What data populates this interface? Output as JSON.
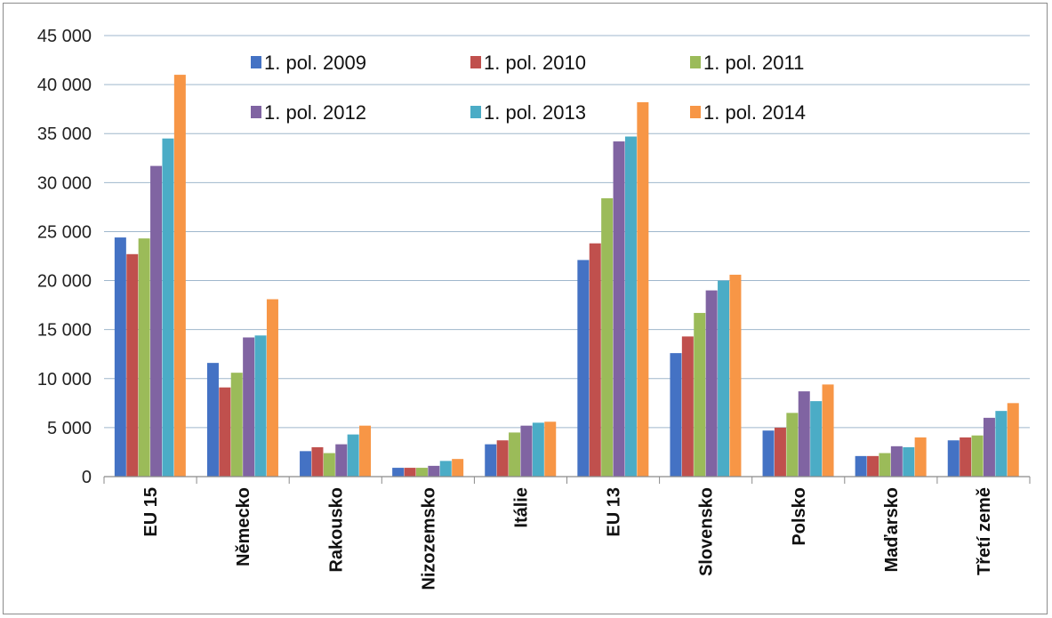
{
  "chart_data": {
    "type": "bar",
    "title": "",
    "xlabel": "",
    "ylabel": "",
    "ylim": [
      0,
      45000
    ],
    "yticks": [
      0,
      5000,
      10000,
      15000,
      20000,
      25000,
      30000,
      35000,
      40000,
      45000
    ],
    "ytick_labels": [
      "0",
      "5 000",
      "10 000",
      "15 000",
      "20 000",
      "25 000",
      "30 000",
      "35 000",
      "40 000",
      "45 000"
    ],
    "grid": true,
    "legend_position": "top",
    "categories": [
      "EU 15",
      "Německo",
      "Rakousko",
      "Nizozemsko",
      "Itálie",
      "EU 13",
      "Slovensko",
      "Polsko",
      "Maďarsko",
      "Třetí země"
    ],
    "series": [
      {
        "name": "1. pol. 2009",
        "color": "#4472c4",
        "values": [
          24400,
          11600,
          2600,
          900,
          3300,
          22100,
          12600,
          4700,
          2100,
          3700
        ]
      },
      {
        "name": "1. pol. 2010",
        "color": "#c0504d",
        "values": [
          22700,
          9100,
          3000,
          900,
          3700,
          23800,
          14300,
          5000,
          2100,
          4000
        ]
      },
      {
        "name": "1. pol. 2011",
        "color": "#9bbb59",
        "values": [
          24300,
          10600,
          2400,
          900,
          4500,
          28400,
          16700,
          6500,
          2400,
          4200
        ]
      },
      {
        "name": "1. pol. 2012",
        "color": "#8064a2",
        "values": [
          31700,
          14200,
          3300,
          1100,
          5200,
          34200,
          19000,
          8700,
          3100,
          6000
        ]
      },
      {
        "name": "1. pol. 2013",
        "color": "#4bacc6",
        "values": [
          34500,
          14400,
          4300,
          1600,
          5500,
          34700,
          20000,
          7700,
          3000,
          6700
        ]
      },
      {
        "name": "1. pol. 2014",
        "color": "#f79646",
        "values": [
          41000,
          18100,
          5200,
          1800,
          5600,
          38200,
          20600,
          9400,
          4000,
          7500
        ]
      }
    ]
  }
}
